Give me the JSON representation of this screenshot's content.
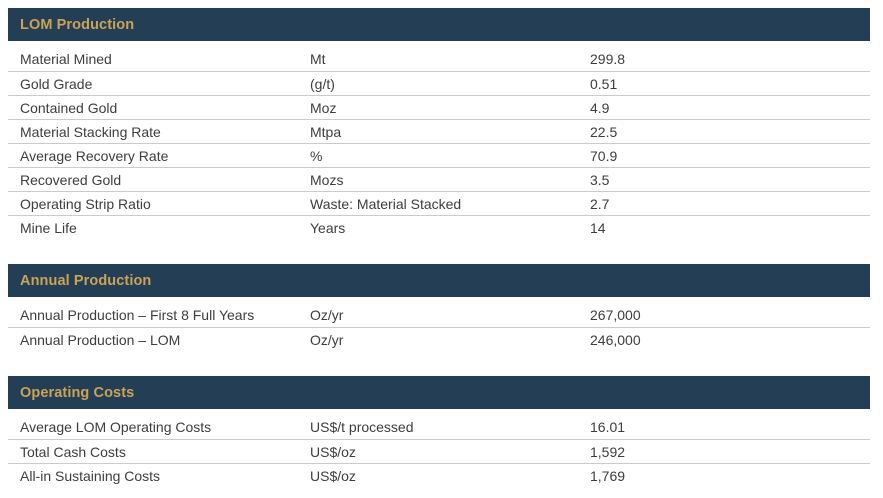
{
  "colors": {
    "header_bg": "#243F55",
    "header_text": "#C9A457",
    "row_text": "#3D3D3D",
    "divider": "#CBCBCB",
    "page_bg": "#FFFFFF"
  },
  "sections": [
    {
      "title": "LOM Production",
      "rows": [
        {
          "label": "Material Mined",
          "unit": "Mt",
          "value": "299.8"
        },
        {
          "label": "Gold Grade",
          "unit": "(g/t)",
          "value": "0.51"
        },
        {
          "label": "Contained Gold",
          "unit": "Moz",
          "value": "4.9"
        },
        {
          "label": "Material Stacking Rate",
          "unit": "Mtpa",
          "value": "22.5"
        },
        {
          "label": "Average Recovery Rate",
          "unit": "%",
          "value": "70.9"
        },
        {
          "label": "Recovered Gold",
          "unit": "Mozs",
          "value": "3.5"
        },
        {
          "label": "Operating Strip Ratio",
          "unit": "Waste: Material Stacked",
          "value": "2.7"
        },
        {
          "label": "Mine Life",
          "unit": "Years",
          "value": "14"
        }
      ]
    },
    {
      "title": "Annual Production",
      "rows": [
        {
          "label": "Annual Production – First 8 Full Years",
          "unit": "Oz/yr",
          "value": "267,000"
        },
        {
          "label": "Annual Production – LOM",
          "unit": "Oz/yr",
          "value": "246,000"
        }
      ]
    },
    {
      "title": "Operating Costs",
      "rows": [
        {
          "label": "Average LOM Operating Costs",
          "unit": "US$/t processed",
          "value": "16.01"
        },
        {
          "label": "Total Cash Costs",
          "unit": "US$/oz",
          "value": "1,592"
        },
        {
          "label": "All-in Sustaining Costs",
          "unit": "US$/oz",
          "value": "1,769"
        }
      ]
    }
  ]
}
